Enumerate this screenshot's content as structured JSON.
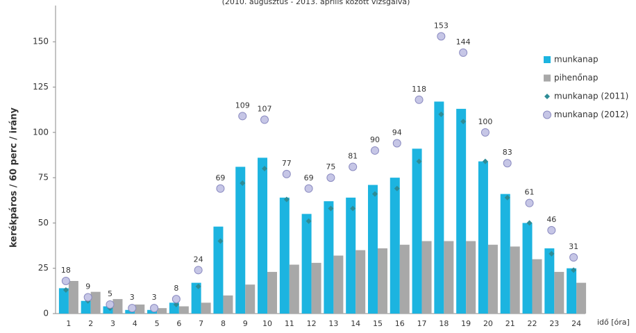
{
  "chart_data": {
    "type": "bar",
    "subtitle": "(2010. augusztus - 2013. április között vizsgálva)",
    "y_label": "kerékpáros / 60 perc / irány",
    "x_label": "idő [óra]",
    "categories": [
      "1",
      "2",
      "3",
      "4",
      "5",
      "6",
      "7",
      "8",
      "9",
      "10",
      "11",
      "12",
      "13",
      "14",
      "15",
      "16",
      "17",
      "18",
      "19",
      "20",
      "21",
      "22",
      "23",
      "24"
    ],
    "series": [
      {
        "name": "munkanap",
        "kind": "bar",
        "color": "#1cb4e0",
        "values": [
          14,
          7,
          4,
          2,
          2,
          6,
          17,
          48,
          81,
          86,
          64,
          55,
          62,
          64,
          71,
          75,
          91,
          117,
          113,
          84,
          66,
          50,
          36,
          25
        ]
      },
      {
        "name": "pihenőnap",
        "kind": "bar",
        "color": "#a8a8a8",
        "values": [
          18,
          12,
          8,
          5,
          3,
          4,
          6,
          10,
          16,
          23,
          27,
          28,
          32,
          35,
          36,
          38,
          40,
          40,
          40,
          38,
          37,
          30,
          23,
          17
        ]
      },
      {
        "name": "munkanap (2011)",
        "kind": "diamond",
        "color": "#2e8c96",
        "values": [
          13,
          7,
          3,
          2,
          2,
          5,
          15,
          40,
          72,
          80,
          63,
          51,
          58,
          58,
          66,
          69,
          84,
          110,
          106,
          84,
          64,
          50,
          33,
          24
        ]
      },
      {
        "name": "munkanap (2012)",
        "kind": "circle",
        "color": "#c6c6e6",
        "labels": true,
        "values": [
          18,
          9,
          5,
          3,
          3,
          8,
          24,
          69,
          109,
          107,
          77,
          69,
          75,
          81,
          90,
          94,
          118,
          153,
          144,
          100,
          83,
          61,
          46,
          31
        ]
      }
    ],
    "ylim": [
      0,
      170
    ],
    "yticks": [
      0,
      25,
      50,
      75,
      100,
      125,
      150
    ],
    "legend": "right",
    "grid": false
  }
}
